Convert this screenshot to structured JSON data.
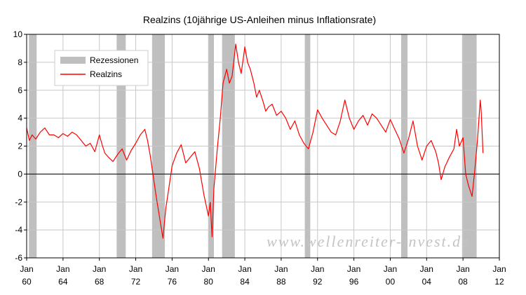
{
  "chart_data": {
    "type": "line",
    "title": "Realzins (10jährige US-Anleihen minus Inflationsrate)",
    "xlabel": "",
    "ylabel": "",
    "xlim": [
      1960,
      2012
    ],
    "ylim": [
      -6,
      10
    ],
    "yticks": [
      -6,
      -4,
      -2,
      0,
      2,
      4,
      6,
      8,
      10
    ],
    "xticks": [
      {
        "value": 1960,
        "line1": "Jan",
        "line2": "60"
      },
      {
        "value": 1964,
        "line1": "Jan",
        "line2": "64"
      },
      {
        "value": 1968,
        "line1": "Jan",
        "line2": "68"
      },
      {
        "value": 1972,
        "line1": "Jan",
        "line2": "72"
      },
      {
        "value": 1976,
        "line1": "Jan",
        "line2": "76"
      },
      {
        "value": 1980,
        "line1": "Jan",
        "line2": "80"
      },
      {
        "value": 1984,
        "line1": "Jan",
        "line2": "84"
      },
      {
        "value": 1988,
        "line1": "Jan",
        "line2": "88"
      },
      {
        "value": 1992,
        "line1": "Jan",
        "line2": "92"
      },
      {
        "value": 1996,
        "line1": "Jan",
        "line2": "96"
      },
      {
        "value": 2000,
        "line1": "Jan",
        "line2": "00"
      },
      {
        "value": 2004,
        "line1": "Jan",
        "line2": "04"
      },
      {
        "value": 2008,
        "line1": "Jan",
        "line2": "08"
      },
      {
        "value": 2012,
        "line1": "Jan",
        "line2": "12"
      }
    ],
    "grid": true,
    "legend": {
      "placement": "top-left",
      "entries": [
        {
          "label": "Rezessionen",
          "type": "band",
          "color": "#bfbfbf"
        },
        {
          "label": "Realzins",
          "type": "line",
          "color": "#ff0000"
        }
      ]
    },
    "recessions": [
      {
        "start": 1960.25,
        "end": 1961.1
      },
      {
        "start": 1969.9,
        "end": 1970.9
      },
      {
        "start": 1973.8,
        "end": 1975.2
      },
      {
        "start": 1980.0,
        "end": 1980.6
      },
      {
        "start": 1981.5,
        "end": 1982.9
      },
      {
        "start": 1990.6,
        "end": 1991.2
      },
      {
        "start": 2001.2,
        "end": 2001.9
      },
      {
        "start": 2007.9,
        "end": 2009.5
      }
    ],
    "series": [
      {
        "name": "Realzins",
        "color": "#ff0000",
        "x": [
          1960.0,
          1960.3,
          1960.6,
          1961.0,
          1961.5,
          1962.0,
          1962.5,
          1963.0,
          1963.5,
          1964.0,
          1964.5,
          1965.0,
          1965.5,
          1966.0,
          1966.5,
          1967.0,
          1967.5,
          1968.0,
          1968.3,
          1968.6,
          1969.0,
          1969.5,
          1970.0,
          1970.5,
          1971.0,
          1971.5,
          1972.0,
          1972.5,
          1973.0,
          1973.3,
          1973.6,
          1974.0,
          1974.3,
          1974.6,
          1975.0,
          1975.3,
          1975.6,
          1976.0,
          1976.5,
          1977.0,
          1977.5,
          1978.0,
          1978.5,
          1979.0,
          1979.5,
          1980.0,
          1980.2,
          1980.4,
          1980.6,
          1981.0,
          1981.3,
          1981.6,
          1982.0,
          1982.3,
          1982.6,
          1983.0,
          1983.3,
          1983.6,
          1984.0,
          1984.3,
          1984.6,
          1985.0,
          1985.3,
          1985.6,
          1986.0,
          1986.3,
          1986.6,
          1987.0,
          1987.5,
          1988.0,
          1988.5,
          1989.0,
          1989.5,
          1990.0,
          1990.5,
          1991.0,
          1991.5,
          1992.0,
          1992.5,
          1993.0,
          1993.5,
          1994.0,
          1994.5,
          1995.0,
          1995.5,
          1996.0,
          1996.5,
          1997.0,
          1997.5,
          1998.0,
          1998.5,
          1999.0,
          1999.5,
          2000.0,
          2000.5,
          2001.0,
          2001.5,
          2002.0,
          2002.5,
          2003.0,
          2003.5,
          2004.0,
          2004.5,
          2005.0,
          2005.3,
          2005.6,
          2006.0,
          2006.5,
          2007.0,
          2007.3,
          2007.6,
          2008.0,
          2008.3,
          2008.6,
          2009.0,
          2009.3,
          2009.6,
          2009.9,
          2010.0,
          2010.2
        ],
        "values": [
          3.3,
          2.4,
          2.8,
          2.5,
          3.0,
          3.3,
          2.8,
          2.8,
          2.6,
          2.9,
          2.7,
          3.0,
          2.8,
          2.4,
          2.0,
          2.2,
          1.6,
          2.8,
          2.1,
          1.5,
          1.2,
          0.9,
          1.4,
          1.8,
          1.0,
          1.7,
          2.2,
          2.8,
          3.2,
          2.4,
          1.3,
          -0.5,
          -1.8,
          -3.0,
          -4.6,
          -2.5,
          -1.2,
          0.6,
          1.5,
          2.1,
          0.8,
          1.2,
          1.6,
          0.4,
          -1.5,
          -3.0,
          -2.0,
          -4.5,
          -1.0,
          2.0,
          4.0,
          6.5,
          7.5,
          6.5,
          7.0,
          9.3,
          8.0,
          7.2,
          9.1,
          8.0,
          7.5,
          6.5,
          5.5,
          6.0,
          5.2,
          4.5,
          4.8,
          5.0,
          4.2,
          4.5,
          4.0,
          3.2,
          3.8,
          2.8,
          2.2,
          1.8,
          3.0,
          4.6,
          4.0,
          3.5,
          3.0,
          2.8,
          3.8,
          5.3,
          4.0,
          3.2,
          3.8,
          4.2,
          3.5,
          4.3,
          4.0,
          3.5,
          3.0,
          3.9,
          3.2,
          2.5,
          1.5,
          2.5,
          3.8,
          2.0,
          1.0,
          2.0,
          2.4,
          1.6,
          0.8,
          -0.4,
          0.5,
          1.2,
          1.8,
          3.2,
          2.0,
          2.6,
          0.0,
          -0.8,
          -1.6,
          0.3,
          2.5,
          5.3,
          4.5,
          1.5
        ]
      }
    ],
    "watermark": "www.wellenreiter-invest.de"
  }
}
